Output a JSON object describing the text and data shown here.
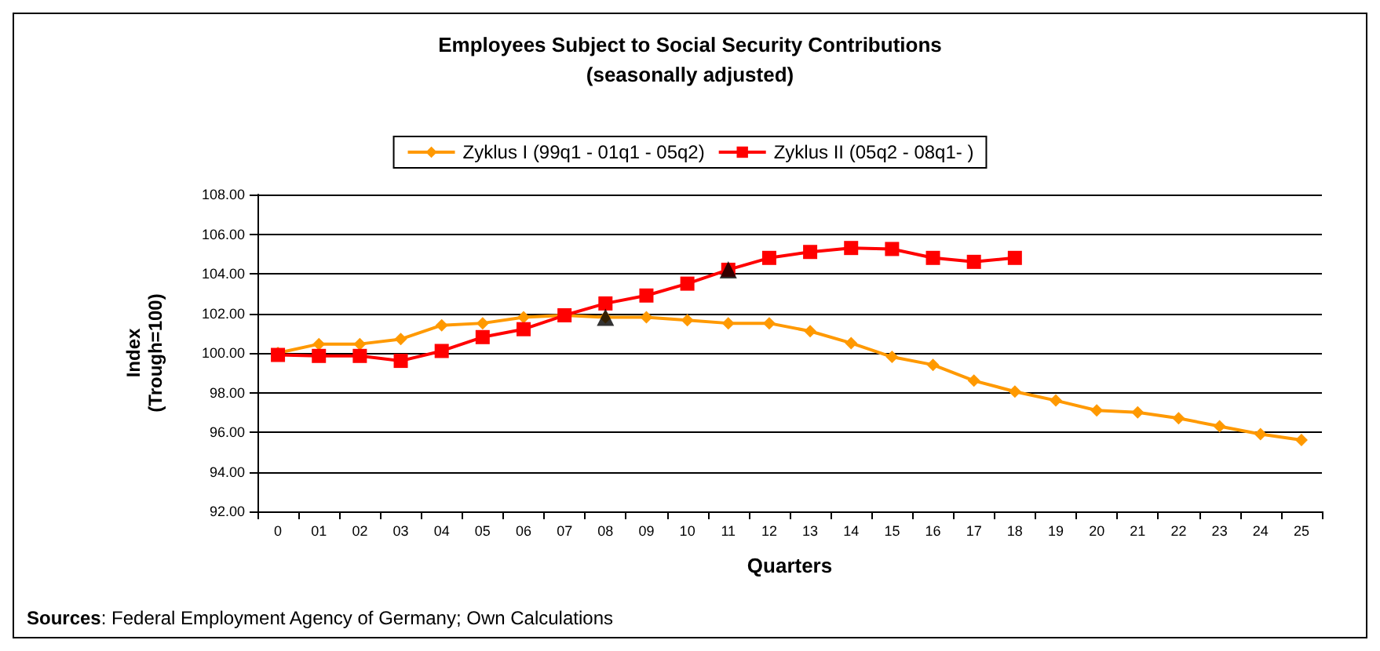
{
  "chart_data": {
    "type": "line",
    "title": "Employees Subject to Social Security Contributions",
    "subtitle": "(seasonally adjusted)",
    "xlabel": "Quarters",
    "ylabel": "Index\n(Trough=100)",
    "categories": [
      "0",
      "01",
      "02",
      "03",
      "04",
      "05",
      "06",
      "07",
      "08",
      "09",
      "10",
      "11",
      "12",
      "13",
      "14",
      "15",
      "16",
      "17",
      "18",
      "19",
      "20",
      "21",
      "22",
      "23",
      "24",
      "25"
    ],
    "series": [
      {
        "name": "Zyklus I (99q1 - 01q1 - 05q2)",
        "color": "#ff9900",
        "marker": "diamond",
        "values": [
          100.0,
          100.45,
          100.45,
          100.7,
          101.4,
          101.5,
          101.8,
          101.9,
          101.8,
          101.8,
          101.65,
          101.5,
          101.5,
          101.1,
          100.5,
          99.8,
          99.4,
          98.6,
          98.05,
          97.6,
          97.1,
          97.0,
          96.7,
          96.3,
          95.9,
          95.6
        ]
      },
      {
        "name": "Zyklus II (05q2 - 08q1- )",
        "color": "#ff0000",
        "marker": "square",
        "values": [
          99.9,
          99.85,
          99.85,
          99.6,
          100.1,
          100.8,
          101.2,
          101.9,
          102.5,
          102.9,
          103.5,
          104.2,
          104.8,
          105.1,
          105.3,
          105.25,
          104.8,
          104.6,
          104.8,
          null,
          null,
          null,
          null,
          null,
          null,
          null
        ]
      },
      {
        "type": "scatter",
        "color": "#000000",
        "marker": "triangle",
        "x": [
          "08"
        ],
        "values": [
          101.8
        ]
      },
      {
        "type": "scatter",
        "color": "#000000",
        "marker": "triangle",
        "x": [
          "11"
        ],
        "values": [
          104.2
        ]
      }
    ],
    "ylim": [
      92,
      108
    ],
    "yticks": [
      {
        "value": 92,
        "label": "92.00"
      },
      {
        "value": 94,
        "label": "94.00"
      },
      {
        "value": 96,
        "label": "96.00"
      },
      {
        "value": 98,
        "label": "98.00"
      },
      {
        "value": 100,
        "label": "100.00"
      },
      {
        "value": 102,
        "label": "102.00"
      },
      {
        "value": 104,
        "label": "104.00"
      },
      {
        "value": 106,
        "label": "106.00"
      },
      {
        "value": 108,
        "label": "108.00"
      }
    ],
    "grid": "y",
    "legend": "top",
    "line_style": "solid",
    "annotations": [
      "Sources: Federal Employment Agency of Germany; Own Calculations"
    ]
  }
}
